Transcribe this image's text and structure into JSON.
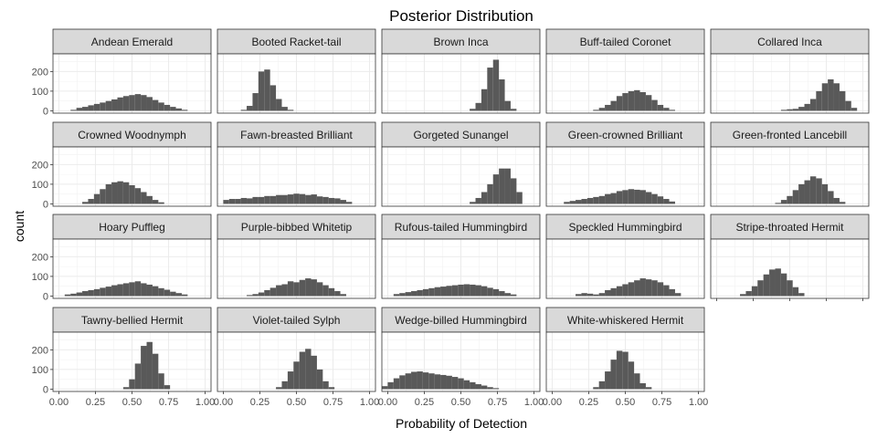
{
  "chart_data": {
    "type": "histogram-facets",
    "title": "Posterior Distribution",
    "xlabel": "Probability of Detection",
    "ylabel": "count",
    "xlim": [
      -0.04,
      1.04
    ],
    "ylim": [
      -12,
      290
    ],
    "x_ticks": [
      0,
      0.25,
      0.5,
      0.75,
      1
    ],
    "x_tick_labels": [
      "0.00",
      "0.25",
      "0.50",
      "0.75",
      "1.00"
    ],
    "y_ticks": [
      0,
      100,
      200
    ],
    "y_tick_labels": [
      "0",
      "100",
      "200"
    ],
    "bin_width": 0.04,
    "grid": true,
    "bar_color": "#595959",
    "strip_color": "#d9d9d9",
    "panels": [
      {
        "name": "Andean Emerald",
        "bins": [
          [
            0.1,
            5
          ],
          [
            0.14,
            15
          ],
          [
            0.18,
            20
          ],
          [
            0.22,
            28
          ],
          [
            0.26,
            35
          ],
          [
            0.3,
            42
          ],
          [
            0.34,
            50
          ],
          [
            0.38,
            58
          ],
          [
            0.42,
            68
          ],
          [
            0.46,
            75
          ],
          [
            0.5,
            80
          ],
          [
            0.54,
            85
          ],
          [
            0.58,
            80
          ],
          [
            0.62,
            70
          ],
          [
            0.66,
            55
          ],
          [
            0.7,
            42
          ],
          [
            0.74,
            30
          ],
          [
            0.78,
            20
          ],
          [
            0.82,
            12
          ],
          [
            0.86,
            5
          ]
        ]
      },
      {
        "name": "Booted Racket-tail",
        "bins": [
          [
            0.14,
            5
          ],
          [
            0.18,
            25
          ],
          [
            0.22,
            90
          ],
          [
            0.26,
            200
          ],
          [
            0.3,
            210
          ],
          [
            0.34,
            130
          ],
          [
            0.38,
            60
          ],
          [
            0.42,
            20
          ],
          [
            0.46,
            5
          ]
        ]
      },
      {
        "name": "Brown Inca",
        "bins": [
          [
            0.58,
            10
          ],
          [
            0.62,
            40
          ],
          [
            0.66,
            110
          ],
          [
            0.7,
            220
          ],
          [
            0.74,
            260
          ],
          [
            0.78,
            160
          ],
          [
            0.82,
            50
          ],
          [
            0.86,
            10
          ]
        ]
      },
      {
        "name": "Buff-tailed Coronet",
        "bins": [
          [
            0.3,
            5
          ],
          [
            0.34,
            15
          ],
          [
            0.38,
            30
          ],
          [
            0.42,
            50
          ],
          [
            0.46,
            75
          ],
          [
            0.5,
            90
          ],
          [
            0.54,
            100
          ],
          [
            0.58,
            105
          ],
          [
            0.62,
            95
          ],
          [
            0.66,
            80
          ],
          [
            0.7,
            55
          ],
          [
            0.74,
            30
          ],
          [
            0.78,
            15
          ],
          [
            0.82,
            5
          ]
        ]
      },
      {
        "name": "Collared Inca",
        "bins": [
          [
            0.46,
            5
          ],
          [
            0.5,
            8
          ],
          [
            0.54,
            10
          ],
          [
            0.58,
            20
          ],
          [
            0.62,
            35
          ],
          [
            0.66,
            60
          ],
          [
            0.7,
            100
          ],
          [
            0.74,
            140
          ],
          [
            0.78,
            160
          ],
          [
            0.82,
            140
          ],
          [
            0.86,
            100
          ],
          [
            0.9,
            50
          ],
          [
            0.94,
            15
          ]
        ]
      },
      {
        "name": "Crowned Woodnymph",
        "bins": [
          [
            0.18,
            10
          ],
          [
            0.22,
            25
          ],
          [
            0.26,
            50
          ],
          [
            0.3,
            75
          ],
          [
            0.34,
            100
          ],
          [
            0.38,
            110
          ],
          [
            0.42,
            115
          ],
          [
            0.46,
            110
          ],
          [
            0.5,
            95
          ],
          [
            0.54,
            80
          ],
          [
            0.58,
            60
          ],
          [
            0.62,
            40
          ],
          [
            0.66,
            20
          ],
          [
            0.7,
            8
          ]
        ]
      },
      {
        "name": "Fawn-breasted Brilliant",
        "bins": [
          [
            0.02,
            20
          ],
          [
            0.06,
            25
          ],
          [
            0.1,
            25
          ],
          [
            0.14,
            30
          ],
          [
            0.18,
            28
          ],
          [
            0.22,
            35
          ],
          [
            0.26,
            35
          ],
          [
            0.3,
            40
          ],
          [
            0.34,
            40
          ],
          [
            0.38,
            45
          ],
          [
            0.42,
            45
          ],
          [
            0.46,
            48
          ],
          [
            0.5,
            52
          ],
          [
            0.54,
            50
          ],
          [
            0.58,
            45
          ],
          [
            0.62,
            48
          ],
          [
            0.66,
            38
          ],
          [
            0.7,
            35
          ],
          [
            0.74,
            30
          ],
          [
            0.78,
            28
          ],
          [
            0.82,
            20
          ],
          [
            0.86,
            10
          ]
        ]
      },
      {
        "name": "Gorgeted Sunangel",
        "bins": [
          [
            0.58,
            10
          ],
          [
            0.62,
            30
          ],
          [
            0.66,
            60
          ],
          [
            0.7,
            100
          ],
          [
            0.74,
            150
          ],
          [
            0.78,
            180
          ],
          [
            0.82,
            180
          ],
          [
            0.86,
            130
          ],
          [
            0.9,
            60
          ]
        ]
      },
      {
        "name": "Green-crowned Brilliant",
        "bins": [
          [
            0.1,
            10
          ],
          [
            0.14,
            15
          ],
          [
            0.18,
            20
          ],
          [
            0.22,
            25
          ],
          [
            0.26,
            30
          ],
          [
            0.3,
            35
          ],
          [
            0.34,
            40
          ],
          [
            0.38,
            50
          ],
          [
            0.42,
            55
          ],
          [
            0.46,
            65
          ],
          [
            0.5,
            70
          ],
          [
            0.54,
            75
          ],
          [
            0.58,
            72
          ],
          [
            0.62,
            70
          ],
          [
            0.66,
            60
          ],
          [
            0.7,
            50
          ],
          [
            0.74,
            38
          ],
          [
            0.78,
            25
          ],
          [
            0.82,
            12
          ]
        ]
      },
      {
        "name": "Green-fronted Lancebill",
        "bins": [
          [
            0.42,
            5
          ],
          [
            0.46,
            20
          ],
          [
            0.5,
            40
          ],
          [
            0.54,
            70
          ],
          [
            0.58,
            100
          ],
          [
            0.62,
            120
          ],
          [
            0.66,
            140
          ],
          [
            0.7,
            130
          ],
          [
            0.74,
            100
          ],
          [
            0.78,
            65
          ],
          [
            0.82,
            30
          ],
          [
            0.86,
            10
          ]
        ]
      },
      {
        "name": "Hoary Puffleg",
        "bins": [
          [
            0.06,
            8
          ],
          [
            0.1,
            12
          ],
          [
            0.14,
            18
          ],
          [
            0.18,
            25
          ],
          [
            0.22,
            30
          ],
          [
            0.26,
            35
          ],
          [
            0.3,
            42
          ],
          [
            0.34,
            48
          ],
          [
            0.38,
            55
          ],
          [
            0.42,
            60
          ],
          [
            0.46,
            65
          ],
          [
            0.5,
            70
          ],
          [
            0.54,
            75
          ],
          [
            0.58,
            65
          ],
          [
            0.62,
            58
          ],
          [
            0.66,
            50
          ],
          [
            0.7,
            40
          ],
          [
            0.74,
            32
          ],
          [
            0.78,
            22
          ],
          [
            0.82,
            15
          ],
          [
            0.86,
            8
          ]
        ]
      },
      {
        "name": "Purple-bibbed Whitetip",
        "bins": [
          [
            0.18,
            5
          ],
          [
            0.22,
            10
          ],
          [
            0.26,
            18
          ],
          [
            0.3,
            30
          ],
          [
            0.34,
            42
          ],
          [
            0.38,
            55
          ],
          [
            0.42,
            60
          ],
          [
            0.46,
            75
          ],
          [
            0.5,
            70
          ],
          [
            0.54,
            82
          ],
          [
            0.58,
            90
          ],
          [
            0.62,
            85
          ],
          [
            0.66,
            70
          ],
          [
            0.7,
            55
          ],
          [
            0.74,
            40
          ],
          [
            0.78,
            25
          ],
          [
            0.82,
            10
          ]
        ]
      },
      {
        "name": "Rufous-tailed Hummingbird",
        "bins": [
          [
            0.06,
            10
          ],
          [
            0.1,
            15
          ],
          [
            0.14,
            20
          ],
          [
            0.18,
            25
          ],
          [
            0.22,
            30
          ],
          [
            0.26,
            35
          ],
          [
            0.3,
            40
          ],
          [
            0.34,
            45
          ],
          [
            0.38,
            48
          ],
          [
            0.42,
            52
          ],
          [
            0.46,
            55
          ],
          [
            0.5,
            58
          ],
          [
            0.54,
            60
          ],
          [
            0.58,
            58
          ],
          [
            0.62,
            55
          ],
          [
            0.66,
            50
          ],
          [
            0.7,
            42
          ],
          [
            0.74,
            35
          ],
          [
            0.78,
            25
          ],
          [
            0.82,
            15
          ],
          [
            0.86,
            8
          ]
        ]
      },
      {
        "name": "Speckled Hummingbird",
        "bins": [
          [
            0.18,
            10
          ],
          [
            0.22,
            15
          ],
          [
            0.26,
            12
          ],
          [
            0.3,
            8
          ],
          [
            0.34,
            15
          ],
          [
            0.38,
            30
          ],
          [
            0.42,
            40
          ],
          [
            0.46,
            50
          ],
          [
            0.5,
            60
          ],
          [
            0.54,
            70
          ],
          [
            0.58,
            80
          ],
          [
            0.62,
            90
          ],
          [
            0.66,
            85
          ],
          [
            0.7,
            80
          ],
          [
            0.74,
            70
          ],
          [
            0.78,
            55
          ],
          [
            0.82,
            35
          ],
          [
            0.86,
            15
          ]
        ]
      },
      {
        "name": "Stripe-throated Hermit",
        "bins": [
          [
            0.18,
            10
          ],
          [
            0.22,
            25
          ],
          [
            0.26,
            50
          ],
          [
            0.3,
            80
          ],
          [
            0.34,
            110
          ],
          [
            0.38,
            135
          ],
          [
            0.42,
            140
          ],
          [
            0.46,
            115
          ],
          [
            0.5,
            80
          ],
          [
            0.54,
            45
          ],
          [
            0.58,
            15
          ]
        ]
      },
      {
        "name": "Tawny-bellied Hermit",
        "bins": [
          [
            0.46,
            10
          ],
          [
            0.5,
            50
          ],
          [
            0.54,
            130
          ],
          [
            0.58,
            220
          ],
          [
            0.62,
            240
          ],
          [
            0.66,
            180
          ],
          [
            0.7,
            80
          ],
          [
            0.74,
            20
          ]
        ]
      },
      {
        "name": "Violet-tailed Sylph",
        "bins": [
          [
            0.38,
            10
          ],
          [
            0.42,
            40
          ],
          [
            0.46,
            90
          ],
          [
            0.5,
            140
          ],
          [
            0.54,
            190
          ],
          [
            0.58,
            205
          ],
          [
            0.62,
            170
          ],
          [
            0.66,
            100
          ],
          [
            0.7,
            40
          ],
          [
            0.74,
            10
          ]
        ]
      },
      {
        "name": "Wedge-billed Hummingbird",
        "bins": [
          [
            -0.02,
            15
          ],
          [
            0.02,
            35
          ],
          [
            0.06,
            55
          ],
          [
            0.1,
            70
          ],
          [
            0.14,
            80
          ],
          [
            0.18,
            88
          ],
          [
            0.22,
            90
          ],
          [
            0.26,
            85
          ],
          [
            0.3,
            80
          ],
          [
            0.34,
            75
          ],
          [
            0.38,
            72
          ],
          [
            0.42,
            68
          ],
          [
            0.46,
            62
          ],
          [
            0.5,
            55
          ],
          [
            0.54,
            45
          ],
          [
            0.58,
            35
          ],
          [
            0.62,
            25
          ],
          [
            0.66,
            18
          ],
          [
            0.7,
            10
          ],
          [
            0.74,
            5
          ]
        ]
      },
      {
        "name": "White-whiskered Hermit",
        "bins": [
          [
            0.3,
            10
          ],
          [
            0.34,
            40
          ],
          [
            0.38,
            90
          ],
          [
            0.42,
            150
          ],
          [
            0.46,
            195
          ],
          [
            0.5,
            190
          ],
          [
            0.54,
            140
          ],
          [
            0.58,
            80
          ],
          [
            0.62,
            30
          ],
          [
            0.66,
            10
          ]
        ]
      }
    ]
  }
}
